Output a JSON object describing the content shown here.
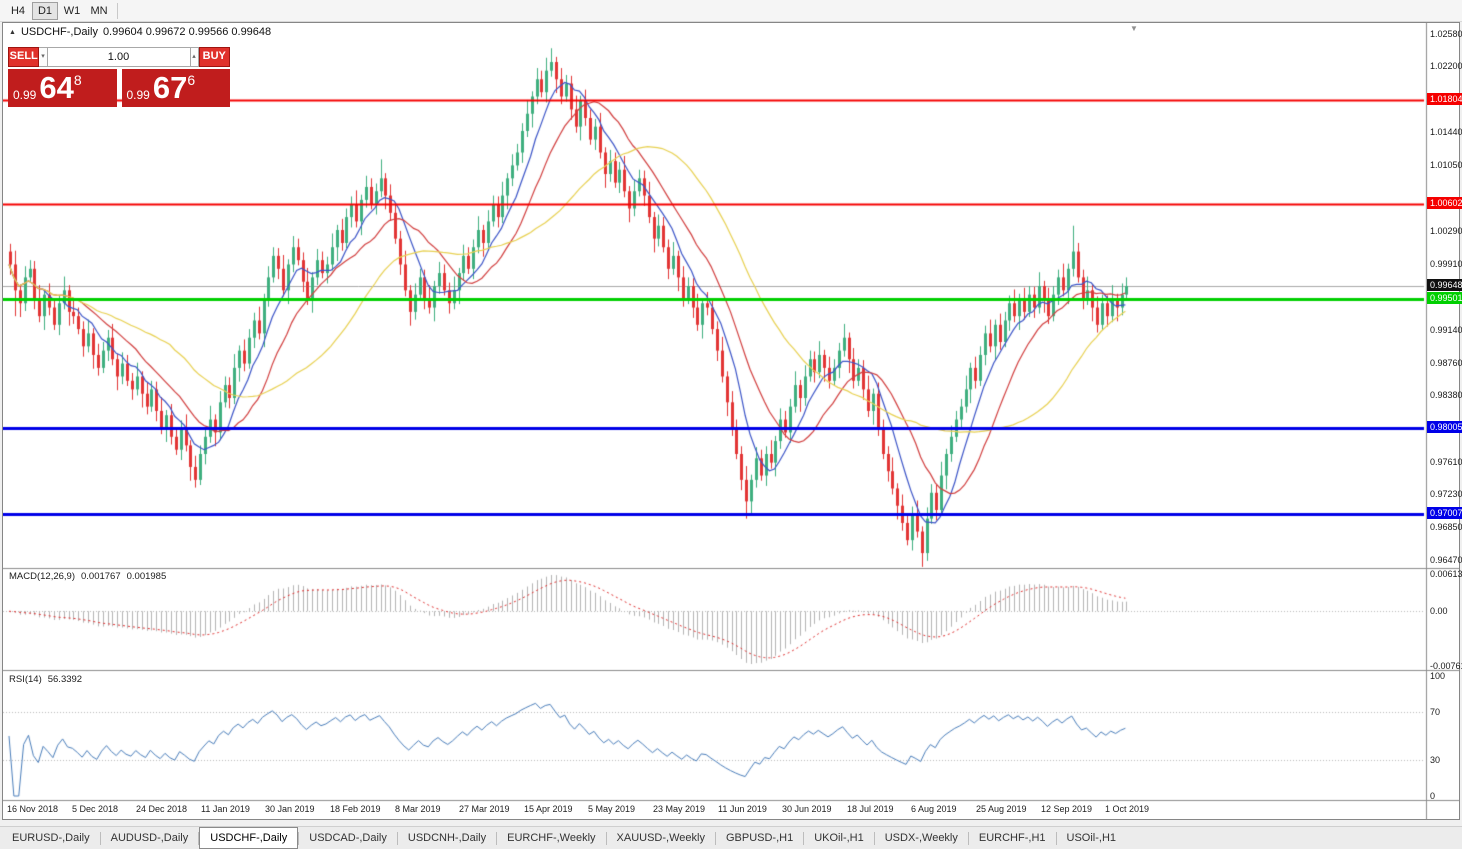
{
  "toolbar": {
    "timeframes": [
      {
        "label": "H4",
        "active": false
      },
      {
        "label": "D1",
        "active": true
      },
      {
        "label": "W1",
        "active": false
      },
      {
        "label": "MN",
        "active": false
      }
    ]
  },
  "chart_header": {
    "symbol": "USDCHF-,Daily",
    "ohlc": "0.99604 0.99672 0.99566 0.99648"
  },
  "icons": {
    "collapse": "▲",
    "shift": "▼",
    "vol_down": "▾",
    "vol_up": "▴"
  },
  "trade_panel": {
    "sell_label": "SELL",
    "buy_label": "BUY",
    "volume": "1.00",
    "sell_price": {
      "prefix": "0.99",
      "big": "64",
      "sup": "8"
    },
    "buy_price": {
      "prefix": "0.99",
      "big": "67",
      "sup": "6"
    }
  },
  "indicators": {
    "macd": {
      "name": "MACD(12,26,9)",
      "value_main": "0.001767",
      "value_signal": "0.001985",
      "axis": [
        "0.00613",
        "0.00",
        "-0.00761"
      ]
    },
    "rsi": {
      "name": "RSI(14)",
      "value": "56.3392",
      "axis": [
        {
          "label": "100",
          "value": 100
        },
        {
          "label": "70",
          "value": 70
        },
        {
          "label": "30",
          "value": 30
        },
        {
          "label": "0",
          "value": 0
        }
      ],
      "levels": [
        70,
        30
      ]
    }
  },
  "dates": [
    "16 Nov 2018",
    "5 Dec 2018",
    "24 Dec 2018",
    "11 Jan 2019",
    "30 Jan 2019",
    "18 Feb 2019",
    "8 Mar 2019",
    "27 Mar 2019",
    "15 Apr 2019",
    "5 May 2019",
    "23 May 2019",
    "11 Jun 2019",
    "30 Jun 2019",
    "18 Jul 2019",
    "6 Aug 2019",
    "25 Aug 2019",
    "12 Sep 2019",
    "1 Oct 2019"
  ],
  "tabs": [
    {
      "label": "EURUSD-,Daily",
      "active": false
    },
    {
      "label": "AUDUSD-,Daily",
      "active": false
    },
    {
      "label": "USDCHF-,Daily",
      "active": true
    },
    {
      "label": "USDCAD-,Daily",
      "active": false
    },
    {
      "label": "USDCNH-,Daily",
      "active": false
    },
    {
      "label": "EURCHF-,Weekly",
      "active": false
    },
    {
      "label": "XAUUSD-,Weekly",
      "active": false
    },
    {
      "label": "GBPUSD-,H1",
      "active": false
    },
    {
      "label": "UKOil-,H1",
      "active": false
    },
    {
      "label": "USDX-,Weekly",
      "active": false
    },
    {
      "label": "EURCHF-,H1",
      "active": false
    },
    {
      "label": "USOil-,H1",
      "active": false
    }
  ],
  "chart_data": {
    "type": "candlestick",
    "symbol": "USDCHF-",
    "timeframe": "Daily",
    "display_ohlc": {
      "open": 0.99604,
      "high": 0.99672,
      "low": 0.99566,
      "close": 0.99648
    },
    "visible_price_range": [
      0.964,
      1.0268
    ],
    "axis_ticks": [
      {
        "label": "1.02580",
        "value": 1.0258
      },
      {
        "label": "1.02200",
        "value": 1.022
      },
      {
        "label": "1.01440",
        "value": 1.0144
      },
      {
        "label": "1.01050",
        "value": 1.0105
      },
      {
        "label": "1.00290",
        "value": 1.0029
      },
      {
        "label": "0.99910",
        "value": 0.9991
      },
      {
        "label": "0.99140",
        "value": 0.9914
      },
      {
        "label": "0.98760",
        "value": 0.9876
      },
      {
        "label": "0.98380",
        "value": 0.9838
      },
      {
        "label": "0.97610",
        "value": 0.9761
      },
      {
        "label": "0.97230",
        "value": 0.9723
      },
      {
        "label": "0.96850",
        "value": 0.9685
      },
      {
        "label": "0.96470",
        "value": 0.9647
      }
    ],
    "levels": [
      {
        "label": "1.01804",
        "value": 1.01804,
        "color": "#f50000",
        "width": 2
      },
      {
        "label": "1.00602",
        "value": 1.00602,
        "color": "#f50000",
        "width": 2
      },
      {
        "label": "0.99501",
        "value": 0.99501,
        "color": "#00cf00",
        "width": 3
      },
      {
        "label": "0.98005",
        "value": 0.98005,
        "color": "#0000e8",
        "width": 3
      },
      {
        "label": "0.97007",
        "value": 0.97007,
        "color": "#0000e8",
        "width": 3
      }
    ],
    "current_price": {
      "label": "0.99648",
      "value": 0.99648,
      "label_bg": "#101010",
      "line_color": "#a8a8a8"
    },
    "first_open": 1.0005,
    "closes": [
      0.999,
      0.996,
      0.9945,
      0.9975,
      0.9985,
      0.995,
      0.993,
      0.9955,
      0.994,
      0.992,
      0.9945,
      0.996,
      0.9935,
      0.993,
      0.9915,
      0.9895,
      0.991,
      0.9885,
      0.987,
      0.989,
      0.9905,
      0.988,
      0.986,
      0.9875,
      0.9855,
      0.9845,
      0.986,
      0.984,
      0.9825,
      0.9845,
      0.982,
      0.98,
      0.9815,
      0.979,
      0.9775,
      0.98,
      0.978,
      0.9755,
      0.974,
      0.977,
      0.979,
      0.981,
      0.9795,
      0.983,
      0.985,
      0.9835,
      0.987,
      0.989,
      0.9875,
      0.9905,
      0.9925,
      0.991,
      0.995,
      0.9975,
      1.0,
      0.9985,
      0.996,
      0.999,
      1.001,
      0.9995,
      0.997,
      0.995,
      0.9975,
      0.9995,
      0.998,
      0.999,
      1.001,
      1.003,
      1.0015,
      1.0045,
      1.006,
      1.004,
      1.0065,
      1.008,
      1.006,
      1.0075,
      1.009,
      1.007,
      1.005,
      1.002,
      0.999,
      0.996,
      0.9935,
      0.9955,
      0.9975,
      0.995,
      0.994,
      0.9965,
      0.998,
      0.996,
      0.9945,
      0.996,
      0.998,
      1.0,
      0.9985,
      1.001,
      1.003,
      1.0015,
      1.004,
      1.006,
      1.0045,
      1.007,
      1.009,
      1.0105,
      1.012,
      1.0145,
      1.0165,
      1.0185,
      1.0205,
      1.019,
      1.0215,
      1.0225,
      1.0205,
      1.0185,
      1.02,
      1.017,
      1.015,
      1.018,
      1.016,
      1.0135,
      1.015,
      1.012,
      1.0095,
      1.011,
      1.0085,
      1.01,
      1.0075,
      1.0055,
      1.0075,
      1.009,
      1.007,
      1.0045,
      1.002,
      1.0035,
      1.001,
      0.9985,
      1.0,
      0.9975,
      0.995,
      0.9965,
      0.994,
      0.992,
      0.9945,
      0.994,
      0.9915,
      0.989,
      0.986,
      0.983,
      0.98,
      0.977,
      0.974,
      0.9715,
      0.974,
      0.9765,
      0.9745,
      0.977,
      0.976,
      0.9785,
      0.981,
      0.9795,
      0.9825,
      0.985,
      0.9835,
      0.986,
      0.988,
      0.9865,
      0.9885,
      0.987,
      0.9855,
      0.987,
      0.989,
      0.9905,
      0.988,
      0.9855,
      0.987,
      0.9845,
      0.982,
      0.984,
      0.98,
      0.977,
      0.975,
      0.973,
      0.971,
      0.969,
      0.967,
      0.97,
      0.968,
      0.9655,
      0.9695,
      0.9725,
      0.9705,
      0.9745,
      0.977,
      0.979,
      0.981,
      0.9825,
      0.9845,
      0.987,
      0.9855,
      0.9885,
      0.991,
      0.9895,
      0.992,
      0.99,
      0.9925,
      0.9945,
      0.993,
      0.995,
      0.9935,
      0.9955,
      0.994,
      0.9965,
      0.995,
      0.993,
      0.9955,
      0.9975,
      0.996,
      0.9985,
      1.0005,
      0.9975,
      0.995,
      0.996,
      0.994,
      0.992,
      0.9945,
      0.993,
      0.995,
      0.994,
      0.9955,
      0.9965
    ],
    "wick_high": [
      0.0009,
      0.0016,
      0.0006,
      0.0013,
      0.001
    ],
    "wick_low": [
      0.0012,
      0.0007,
      0.0016,
      0.0009,
      0.0006
    ],
    "spikes": [
      {
        "i": 1,
        "low": 0.993
      },
      {
        "i": 38,
        "low": 0.9737
      },
      {
        "i": 76,
        "high": 1.0112
      },
      {
        "i": 110,
        "high": 1.023
      },
      {
        "i": 111,
        "high": 1.024
      },
      {
        "i": 151,
        "low": 0.9695
      },
      {
        "i": 187,
        "low": 0.9647
      },
      {
        "i": 218,
        "high": 1.0035
      }
    ],
    "ma": [
      {
        "period": 8,
        "color": "#3c55c8"
      },
      {
        "period": 16,
        "color": "#d23f3f"
      },
      {
        "period": 34,
        "color": "#e8d152"
      }
    ],
    "macd_params": {
      "fast": 12,
      "slow": 26,
      "signal": 9
    },
    "rsi_period": 14,
    "colors": {
      "up": "#3faf7f",
      "down": "#e23535",
      "histogram": "#b4b4b4",
      "signal_line": "#e03030",
      "rsi_line": "#4a7ebb",
      "grid_dotted": "#b8b8b8"
    }
  }
}
